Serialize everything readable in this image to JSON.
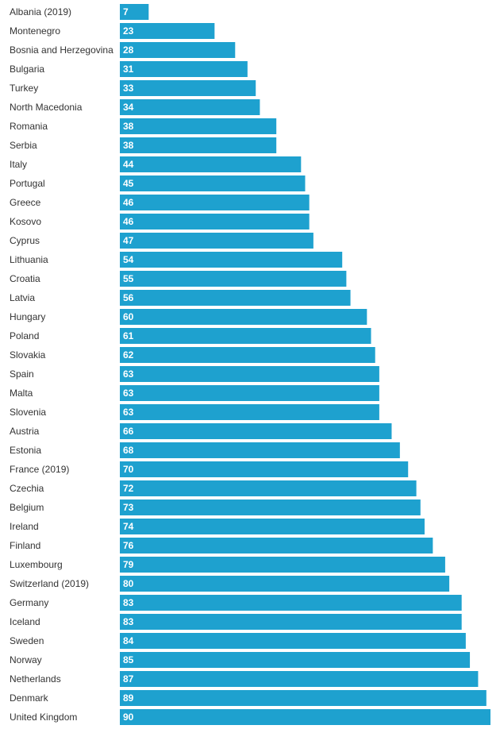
{
  "colors": {
    "bar": "#1ea1cf",
    "label": "#333333",
    "value_text": "#ffffff",
    "background": "#ffffff"
  },
  "chart_data": {
    "type": "bar",
    "orientation": "horizontal",
    "title": "",
    "xlabel": "",
    "ylabel": "",
    "xlim": [
      0,
      90
    ],
    "grid": false,
    "legend": "none",
    "categories": [
      "Albania (2019)",
      "Montenegro",
      "Bosnia and Herzegovina",
      "Bulgaria",
      "Turkey",
      "North Macedonia",
      "Romania",
      "Serbia",
      "Italy",
      "Portugal",
      "Greece",
      "Kosovo",
      "Cyprus",
      "Lithuania",
      "Croatia",
      "Latvia",
      "Hungary",
      "Poland",
      "Slovakia",
      "Spain",
      "Malta",
      "Slovenia",
      "Austria",
      "Estonia",
      "France (2019)",
      "Czechia",
      "Belgium",
      "Ireland",
      "Finland",
      "Luxembourg",
      "Switzerland (2019)",
      "Germany",
      "Iceland",
      "Sweden",
      "Norway",
      "Netherlands",
      "Denmark",
      "United Kingdom"
    ],
    "values": [
      7,
      23,
      28,
      31,
      33,
      34,
      38,
      38,
      44,
      45,
      46,
      46,
      47,
      54,
      55,
      56,
      60,
      61,
      62,
      63,
      63,
      63,
      66,
      68,
      70,
      72,
      73,
      74,
      76,
      79,
      80,
      83,
      83,
      84,
      85,
      87,
      89,
      90
    ]
  }
}
